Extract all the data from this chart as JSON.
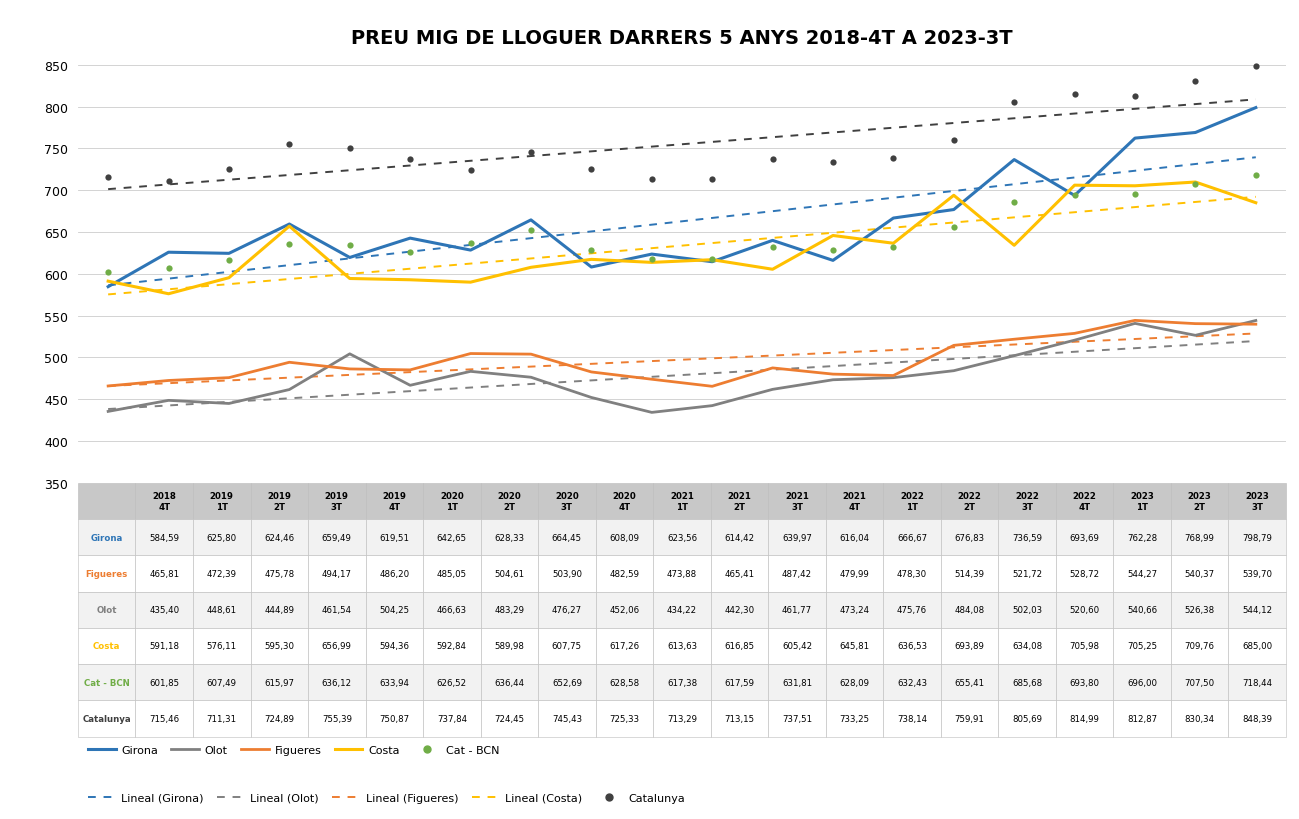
{
  "title": "PREU MIG DE LLOGUER DARRERS 5 ANYS 2018-4T A 2023-3T",
  "x_labels": [
    "2018\n4T",
    "2019\n1T",
    "2019\n2T",
    "2019\n3T",
    "2019\n4T",
    "2020\n1T",
    "2020\n2T",
    "2020\n3T",
    "2020\n4T",
    "2021\n1T",
    "2021\n2T",
    "2021\n3T",
    "2021\n4T",
    "2022\n1T",
    "2022\n2T",
    "2022\n3T",
    "2022\n4T",
    "2023\n1T",
    "2023\n2T",
    "2023\n3T"
  ],
  "Girona": [
    584.59,
    625.8,
    624.46,
    659.49,
    619.51,
    642.65,
    628.33,
    664.45,
    608.09,
    623.56,
    614.42,
    639.97,
    616.04,
    666.67,
    676.83,
    736.59,
    693.69,
    762.28,
    768.99,
    798.79
  ],
  "Figueres": [
    465.81,
    472.39,
    475.78,
    494.17,
    486.2,
    485.05,
    504.61,
    503.9,
    482.59,
    473.88,
    465.41,
    487.42,
    479.99,
    478.3,
    514.39,
    521.72,
    528.72,
    544.27,
    540.37,
    539.7
  ],
  "Olot": [
    435.4,
    448.61,
    444.89,
    461.54,
    504.25,
    466.63,
    483.29,
    476.27,
    452.06,
    434.22,
    442.3,
    461.77,
    473.24,
    475.76,
    484.08,
    502.03,
    520.6,
    540.66,
    526.38,
    544.12
  ],
  "Costa": [
    591.18,
    576.11,
    595.3,
    656.99,
    594.36,
    592.84,
    589.98,
    607.75,
    617.26,
    613.63,
    616.85,
    605.42,
    645.81,
    636.53,
    693.89,
    634.08,
    705.98,
    705.25,
    709.76,
    685.0
  ],
  "Cat_BCN": [
    601.85,
    607.49,
    615.97,
    636.12,
    633.94,
    626.52,
    636.44,
    652.69,
    628.58,
    617.38,
    617.59,
    631.81,
    628.09,
    632.43,
    655.41,
    685.68,
    693.8,
    696.0,
    707.5,
    718.44
  ],
  "Catalunya": [
    715.46,
    711.31,
    724.89,
    755.39,
    750.87,
    737.84,
    724.45,
    745.43,
    725.33,
    713.29,
    713.15,
    737.51,
    733.25,
    738.14,
    759.91,
    805.69,
    814.99,
    812.87,
    830.34,
    848.39
  ],
  "colors": {
    "Girona": "#2e75b6",
    "Figueres": "#ed7d31",
    "Olot": "#808080",
    "Costa": "#ffc000",
    "Cat_BCN": "#70ad47",
    "Catalunya": "#404040"
  },
  "ylim": [
    350,
    860
  ],
  "yticks": [
    350,
    400,
    450,
    500,
    550,
    600,
    650,
    700,
    750,
    800,
    850
  ],
  "background_color": "#ffffff",
  "grid_color": "#cccccc",
  "table_header_bg": "#c8c8c8",
  "table_odd_bg": "#f2f2f2",
  "table_even_bg": "#ffffff"
}
